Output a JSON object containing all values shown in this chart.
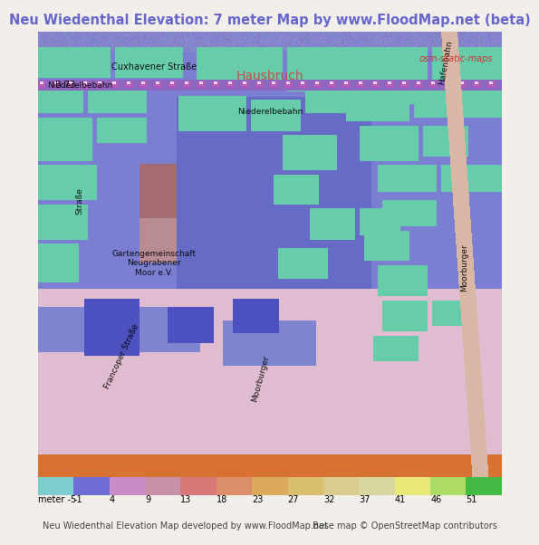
{
  "title": "Neu Wiedenthal Elevation: 7 meter Map by www.FloodMap.net (beta)",
  "title_color": "#6666cc",
  "title_fontsize": 10.5,
  "colorbar_labels": [
    "meter -5",
    "-1",
    "4",
    "9",
    "13",
    "18",
    "23",
    "27",
    "32",
    "37",
    "41",
    "46",
    "51"
  ],
  "colorbar_values": [
    -5,
    -1,
    4,
    9,
    13,
    18,
    23,
    27,
    32,
    37,
    41,
    46,
    51
  ],
  "colorbar_colors": [
    "#7dcfcf",
    "#6e6ed4",
    "#c88bc8",
    "#c890a8",
    "#d97878",
    "#da8f6a",
    "#d9ab5a",
    "#d9be6e",
    "#d9cc8e",
    "#d8d89e",
    "#e8e878",
    "#aadc66",
    "#44bb44"
  ],
  "footer_left": "Neu Wiedenthal Elevation Map developed by www.FloodMap.net",
  "footer_right": "Base map © OpenStreetMap contributors",
  "osm_credit": "osm-static-maps",
  "fig_bg_color": "#f2eeea",
  "title_bg_color": "#f2eeea",
  "map_bg_pinkish": "#e8c8d8",
  "map_bg_blue": "#8888cc",
  "map_bg_teal": "#66ccaa"
}
